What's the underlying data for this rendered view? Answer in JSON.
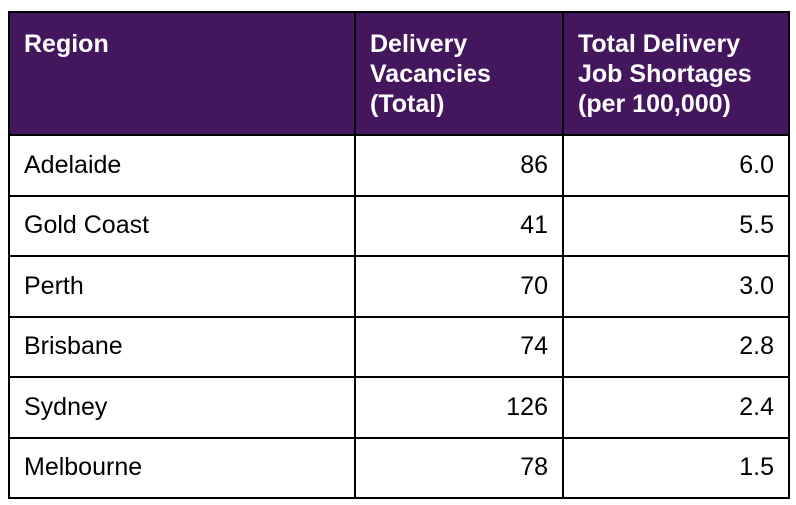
{
  "table": {
    "headers": [
      [
        "Region"
      ],
      [
        "Delivery",
        "Vacancies",
        "(Total)"
      ],
      [
        "Total Delivery",
        "Job Shortages",
        "(per 100,000)"
      ]
    ],
    "rows": [
      {
        "region": "Adelaide",
        "vacancies": "86",
        "shortages": "6.0"
      },
      {
        "region": "Gold Coast",
        "vacancies": "41",
        "shortages": "5.5"
      },
      {
        "region": "Perth",
        "vacancies": "70",
        "shortages": "3.0"
      },
      {
        "region": "Brisbane",
        "vacancies": "74",
        "shortages": "2.8"
      },
      {
        "region": "Sydney",
        "vacancies": "126",
        "shortages": "2.4"
      },
      {
        "region": "Melbourne",
        "vacancies": "78",
        "shortages": "1.5"
      }
    ]
  },
  "colors": {
    "header_bg": "#44165e",
    "header_text": "#ffffff",
    "border": "#000000"
  }
}
